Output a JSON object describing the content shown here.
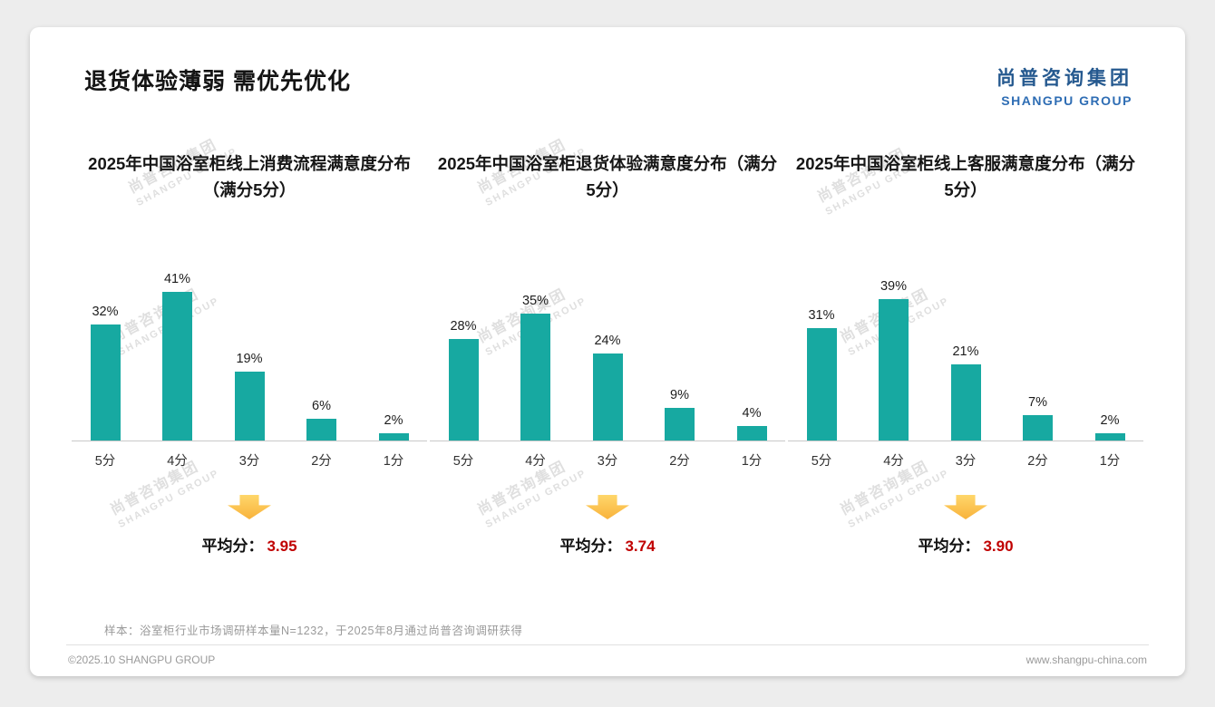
{
  "page": {
    "title": "退货体验薄弱 需优先优化",
    "logo": {
      "cn": "尚普咨询集团",
      "en": "SHANGPU GROUP"
    },
    "watermark": {
      "line1": "尚普咨询集团",
      "line2": "SHANGPU GROUP"
    },
    "footnote": "样本：浴室柜行业市场调研样本量N=1232，于2025年8月通过尚普咨询调研获得",
    "footer_left": "©2025.10 SHANGPU GROUP",
    "footer_right": "www.shangpu-china.com"
  },
  "colors": {
    "bar": "#17A9A1",
    "accent_red": "#C00000",
    "arrow": "#F8B23B",
    "logo_blue": "#25598F"
  },
  "chart_data": [
    {
      "type": "bar",
      "title": "2025年中国浴室柜线上消费流程满意度分布（满分5分）",
      "categories": [
        "5分",
        "4分",
        "3分",
        "2分",
        "1分"
      ],
      "values": [
        32,
        41,
        19,
        6,
        2
      ],
      "value_suffix": "%",
      "ylim": [
        0,
        45
      ],
      "average_label": "平均分：",
      "average": "3.95"
    },
    {
      "type": "bar",
      "title": "2025年中国浴室柜退货体验满意度分布（满分5分）",
      "categories": [
        "5分",
        "4分",
        "3分",
        "2分",
        "1分"
      ],
      "values": [
        28,
        35,
        24,
        9,
        4
      ],
      "value_suffix": "%",
      "ylim": [
        0,
        45
      ],
      "average_label": "平均分：",
      "average": "3.74"
    },
    {
      "type": "bar",
      "title": "2025年中国浴室柜线上客服满意度分布（满分5分）",
      "categories": [
        "5分",
        "4分",
        "3分",
        "2分",
        "1分"
      ],
      "values": [
        31,
        39,
        21,
        7,
        2
      ],
      "value_suffix": "%",
      "ylim": [
        0,
        45
      ],
      "average_label": "平均分：",
      "average": "3.90"
    }
  ]
}
